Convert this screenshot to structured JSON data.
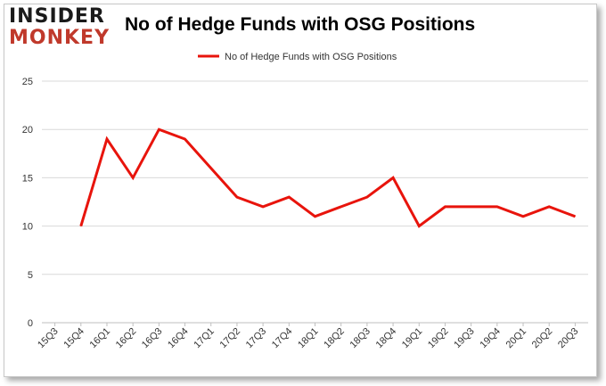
{
  "logo": {
    "top_text": "INSIDER",
    "bottom_text": "MONKEY",
    "color_top": "#1a1a1a",
    "color_bottom": "#c0392b"
  },
  "chart_data": {
    "type": "line",
    "title": "No of Hedge Funds with OSG Positions",
    "xlabel": "",
    "ylabel": "",
    "categories": [
      "15Q3",
      "15Q4",
      "16Q1",
      "16Q2",
      "16Q3",
      "16Q4",
      "17Q1",
      "17Q2",
      "17Q3",
      "17Q4",
      "18Q1",
      "18Q2",
      "18Q3",
      "18Q4",
      "19Q1",
      "19Q2",
      "19Q3",
      "19Q4",
      "20Q1",
      "20Q2",
      "20Q3"
    ],
    "series": [
      {
        "name": "No of Hedge Funds with OSG Positions",
        "color": "#e8140c",
        "values": [
          null,
          10,
          19,
          15,
          20,
          19,
          16,
          13,
          12,
          13,
          11,
          12,
          13,
          15,
          10,
          12,
          12,
          12,
          11,
          12,
          11
        ]
      }
    ],
    "ylim": [
      0,
      25
    ],
    "yticks": [
      0,
      5,
      10,
      15,
      20,
      25
    ],
    "grid": true,
    "legend_position": "top"
  }
}
